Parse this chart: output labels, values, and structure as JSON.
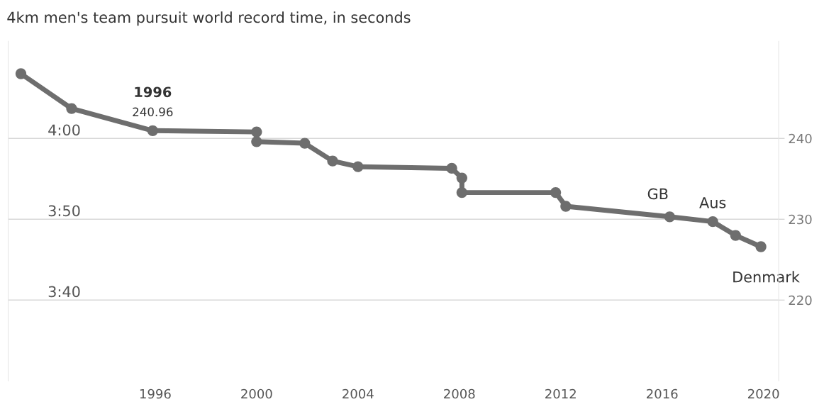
{
  "chart_data": {
    "type": "line",
    "title": "4km men's team pursuit world record time, in seconds",
    "x": [
      1990.7,
      1992.7,
      1995.9,
      2000.0,
      2000.0,
      2001.9,
      2003.0,
      2004.0,
      2007.7,
      2008.1,
      2008.1,
      2011.8,
      2012.2,
      2016.3,
      2018.0,
      2018.9,
      2019.9
    ],
    "series": [
      {
        "color": "#6e6e6e",
        "values": [
          248.0,
          243.7,
          240.96,
          240.8,
          239.6,
          239.4,
          237.2,
          236.5,
          236.3,
          235.1,
          233.3,
          233.3,
          231.6,
          230.3,
          229.7,
          228.0,
          226.6
        ]
      }
    ],
    "xlim": [
      1990.2,
      2020.6
    ],
    "xticks": [
      1996,
      2000,
      2004,
      2008,
      2012,
      2016,
      2020
    ],
    "ylim": [
      210,
      252
    ],
    "yticks": [
      {
        "value": 220,
        "label": "3:40"
      },
      {
        "value": 230,
        "label": "3:50"
      },
      {
        "value": 240,
        "label": "4:00"
      }
    ],
    "y2lim": [
      210,
      252
    ],
    "y2ticks": [
      220,
      230,
      240
    ],
    "grid": "y",
    "marker": "circle",
    "line_style": "solid",
    "legend": false,
    "annotations": [
      {
        "text": "1996",
        "x": 1995.9,
        "y": 240.96
      },
      {
        "text": "240.96",
        "x": 1995.9,
        "y": 240.96
      },
      {
        "text": "GB",
        "x": 2016.3,
        "y": 230.3
      },
      {
        "text": "Aus",
        "x": 2018.0,
        "y": 229.7
      },
      {
        "text": "Denmark",
        "x": 2019.9,
        "y": 226.6
      }
    ]
  }
}
